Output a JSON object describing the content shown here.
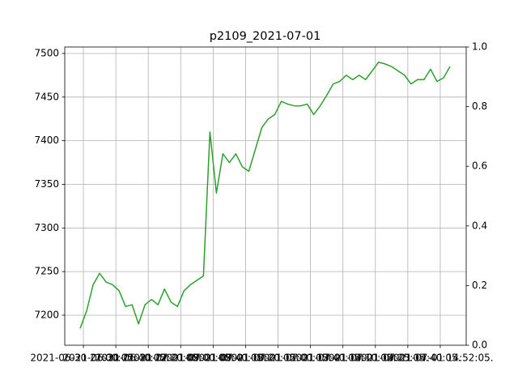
{
  "chart_data": {
    "type": "line",
    "title": "p2109_2021-07-01",
    "x": [
      -1,
      1,
      3,
      5,
      7,
      9,
      11,
      13,
      15,
      17,
      19,
      21,
      23,
      25,
      27,
      29,
      31,
      33,
      35,
      37,
      39,
      41,
      43,
      45,
      47,
      49,
      51,
      53,
      55,
      57,
      59,
      61,
      63,
      65,
      67,
      69,
      71,
      73,
      75,
      77,
      79,
      81,
      83,
      85,
      87,
      89,
      91,
      93,
      95,
      97,
      99,
      101,
      103,
      105,
      107,
      109,
      111,
      113
    ],
    "series": [
      {
        "color": "#2ca02c",
        "values": [
          7185,
          7205,
          7235,
          7248,
          7238,
          7235,
          7228,
          7210,
          7212,
          7190,
          7212,
          7218,
          7212,
          7230,
          7215,
          7210,
          7228,
          7235,
          7240,
          7245,
          7410,
          7340,
          7385,
          7375,
          7385,
          7370,
          7365,
          7390,
          7415,
          7425,
          7430,
          7445,
          7442,
          7440,
          7440,
          7442,
          7430,
          7440,
          7452,
          7465,
          7468,
          7475,
          7470,
          7475,
          7470,
          7480,
          7490,
          7488,
          7485,
          7480,
          7475,
          7465,
          7470,
          7470,
          7482,
          7468,
          7472,
          7485
        ]
      }
    ],
    "xlim": [
      -5.75,
      118
    ],
    "xticks": [
      {
        "value": 0,
        "label": "2021-06-30 21:00:05."
      },
      {
        "value": 10,
        "label": "2021-06-30 21:40:05."
      },
      {
        "value": 20,
        "label": "2021-06-30 22:20:05."
      },
      {
        "value": 30,
        "label": "2021-07-01 09:00:05."
      },
      {
        "value": 40,
        "label": "2021-07-01 09:40:05."
      },
      {
        "value": 50,
        "label": "2021-07-01 10:20:05."
      },
      {
        "value": 60,
        "label": "2021-07-01 11:00:05."
      },
      {
        "value": 70,
        "label": "2021-07-01 13:40:05."
      },
      {
        "value": 80,
        "label": "2021-07-01 14:10:05."
      },
      {
        "value": 90,
        "label": "2021-07-01 14:25:05."
      },
      {
        "value": 100,
        "label": "2021-07-01 14:40:05."
      },
      {
        "value": 110,
        "label": "2021-07-01 14:52:05."
      }
    ],
    "ylim": [
      7165.6,
      7507.4
    ],
    "yticks": [
      7200,
      7250,
      7300,
      7350,
      7400,
      7450,
      7500
    ],
    "y2lim": [
      0,
      1
    ],
    "y2ticks": [
      {
        "value": 0,
        "label": "0.0"
      },
      {
        "value": 0.2,
        "label": "0.2"
      },
      {
        "value": 0.4,
        "label": "0.4"
      },
      {
        "value": 0.6,
        "label": "0.6"
      },
      {
        "value": 0.8,
        "label": "0.8"
      },
      {
        "value": 1,
        "label": "1.0"
      }
    ],
    "grid": true
  }
}
